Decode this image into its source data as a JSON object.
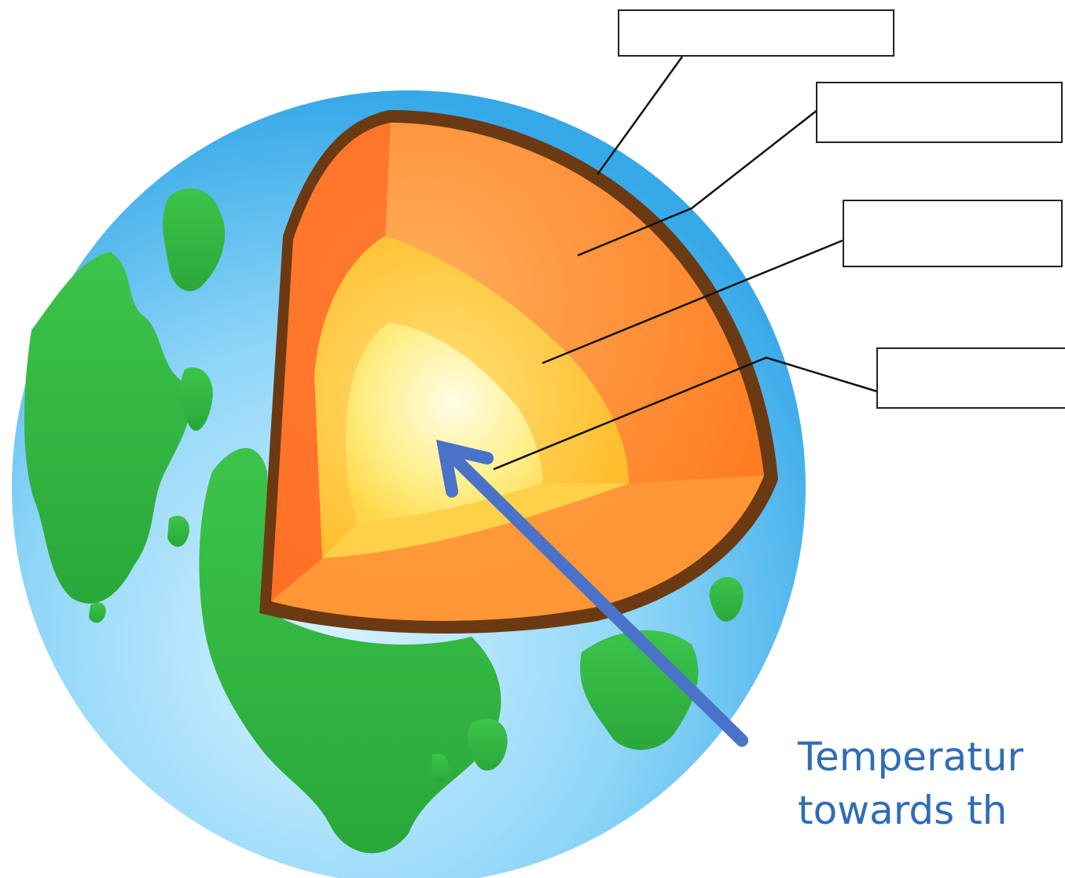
{
  "caption": {
    "line1": "Temperatur",
    "line2": "towards th"
  },
  "label_boxes": [
    {
      "name": "crust-label-box",
      "text": ""
    },
    {
      "name": "mantle-label-box",
      "text": ""
    },
    {
      "name": "outer-core-label-box",
      "text": ""
    },
    {
      "name": "inner-core-label-box",
      "text": ""
    }
  ],
  "colors": {
    "ocean": "#4ab8ee",
    "land": "#2db83a",
    "crust": "#6b3a12",
    "mantle": "#ff8a2a",
    "outer_core": "#ffc933",
    "inner_core": "#fff2a8",
    "arrow": "#4a72c8",
    "caption": "#2f6db5"
  }
}
